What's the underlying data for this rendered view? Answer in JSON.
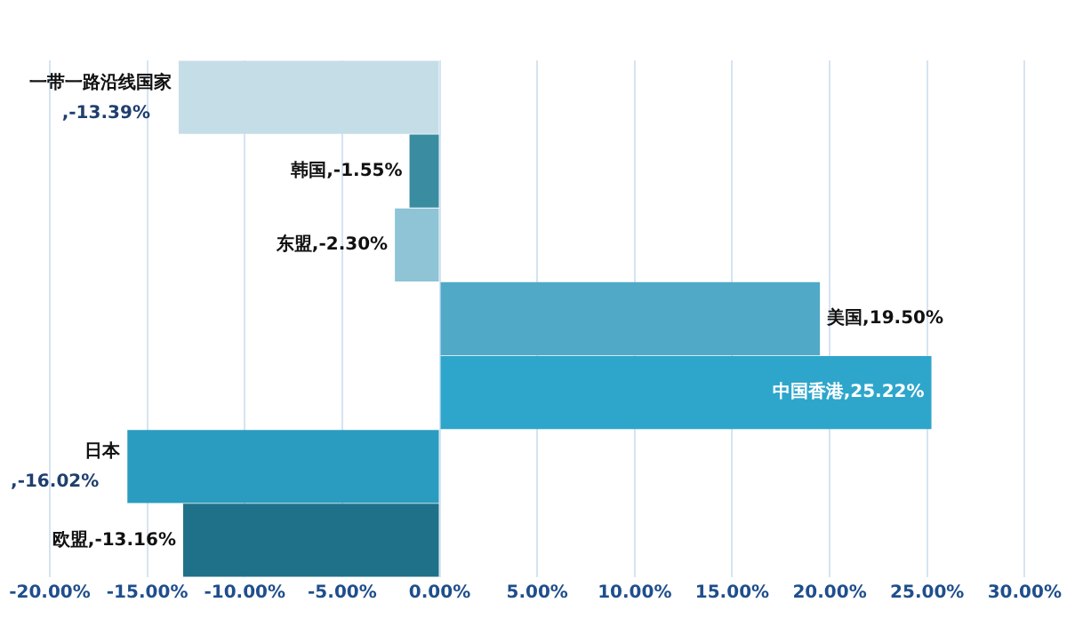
{
  "chart_data": {
    "type": "bar",
    "orientation": "horizontal",
    "categories": [
      "一带一路沿线国家",
      "韩国",
      "东盟",
      "美国",
      "中国香港",
      "日本",
      "欧盟"
    ],
    "values": [
      -13.39,
      -1.55,
      -2.3,
      19.5,
      25.22,
      -16.02,
      -13.16
    ],
    "value_labels": [
      ",-13.39%",
      ",-1.55%",
      ",-2.30%",
      ",19.50%",
      ",25.22%",
      ",-16.02%",
      ",-13.16%"
    ],
    "colors": [
      "#c5dde7",
      "#3a8ca0",
      "#8ec4d6",
      "#4fa9c7",
      "#2ea6cb",
      "#2a9cbf",
      "#1f7189"
    ],
    "xlim": [
      -20,
      30
    ],
    "xticks": [
      {
        "value": -20,
        "label": "-20.00%"
      },
      {
        "value": -15,
        "label": "-15.00%"
      },
      {
        "value": -10,
        "label": "-10.00%"
      },
      {
        "value": -5,
        "label": "-5.00%"
      },
      {
        "value": 0,
        "label": "0.00%"
      },
      {
        "value": 5,
        "label": "5.00%"
      },
      {
        "value": 10,
        "label": "10.00%"
      },
      {
        "value": 15,
        "label": "15.00%"
      },
      {
        "value": 20,
        "label": "20.00%"
      },
      {
        "value": 25,
        "label": "25.00%"
      },
      {
        "value": 30,
        "label": "30.00%"
      }
    ],
    "grid": "x",
    "legend": false,
    "tick_labels": "x"
  }
}
